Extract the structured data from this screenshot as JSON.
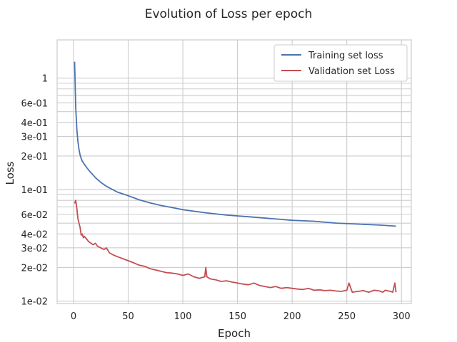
{
  "chart_data": {
    "type": "line",
    "title": "Evolution of Loss per epoch",
    "xlabel": "Epoch",
    "ylabel": "Loss",
    "yscale": "log",
    "xlim": [
      -15,
      309
    ],
    "ylim": [
      0.0095,
      2.2
    ],
    "grid": true,
    "legend_position": "top-right",
    "x_ticks": [
      0,
      50,
      100,
      150,
      200,
      250,
      300
    ],
    "x_tick_labels": [
      "0",
      "50",
      "100",
      "150",
      "200",
      "250",
      "300"
    ],
    "y_ticks": [
      0.01,
      0.02,
      0.03,
      0.04,
      0.06,
      0.1,
      0.2,
      0.3,
      0.4,
      0.6,
      1
    ],
    "y_tick_labels": [
      "1e-02",
      "2e-02",
      "3e-02",
      "4e-02",
      "6e-02",
      "1e-01",
      "2e-01",
      "3e-01",
      "4e-01",
      "6e-01",
      "1"
    ],
    "y_minor_grid": [
      0.05,
      0.07,
      0.08,
      0.09,
      0.5,
      0.7,
      0.8,
      0.9
    ],
    "series": [
      {
        "name": "Training set loss",
        "color": "#4c72b0",
        "x": [
          1,
          2,
          3,
          4,
          5,
          6,
          7,
          8,
          10,
          12,
          15,
          18,
          20,
          25,
          30,
          40,
          50,
          60,
          70,
          80,
          90,
          100,
          120,
          140,
          160,
          180,
          200,
          220,
          240,
          260,
          280,
          295
        ],
        "y": [
          1.4,
          0.55,
          0.35,
          0.27,
          0.23,
          0.205,
          0.19,
          0.18,
          0.168,
          0.158,
          0.145,
          0.135,
          0.128,
          0.116,
          0.107,
          0.095,
          0.088,
          0.081,
          0.076,
          0.072,
          0.069,
          0.066,
          0.062,
          0.059,
          0.057,
          0.055,
          0.053,
          0.052,
          0.05,
          0.049,
          0.048,
          0.047
        ]
      },
      {
        "name": "Validation set Loss",
        "color": "#c44e52",
        "x": [
          1,
          2,
          3,
          4,
          5,
          6,
          7,
          8,
          9,
          10,
          12,
          14,
          16,
          18,
          20,
          22,
          25,
          28,
          30,
          33,
          36,
          40,
          45,
          50,
          55,
          60,
          65,
          70,
          75,
          80,
          85,
          90,
          95,
          100,
          105,
          110,
          115,
          120,
          121,
          122,
          125,
          130,
          135,
          140,
          145,
          150,
          155,
          160,
          165,
          170,
          175,
          180,
          185,
          190,
          195,
          200,
          205,
          210,
          215,
          220,
          225,
          230,
          235,
          240,
          245,
          250,
          252,
          255,
          260,
          265,
          270,
          275,
          280,
          283,
          285,
          290,
          292,
          294,
          295
        ],
        "y": [
          0.075,
          0.08,
          0.068,
          0.055,
          0.05,
          0.046,
          0.039,
          0.04,
          0.037,
          0.038,
          0.036,
          0.034,
          0.033,
          0.032,
          0.033,
          0.031,
          0.03,
          0.029,
          0.03,
          0.027,
          0.026,
          0.025,
          0.024,
          0.023,
          0.022,
          0.021,
          0.0205,
          0.0195,
          0.019,
          0.0185,
          0.018,
          0.0178,
          0.0175,
          0.017,
          0.0175,
          0.0165,
          0.016,
          0.0165,
          0.02,
          0.0165,
          0.0158,
          0.0155,
          0.015,
          0.0152,
          0.0148,
          0.0145,
          0.0142,
          0.014,
          0.0145,
          0.0138,
          0.0135,
          0.0132,
          0.0135,
          0.013,
          0.0132,
          0.013,
          0.0128,
          0.0127,
          0.013,
          0.0125,
          0.0126,
          0.0124,
          0.0125,
          0.0123,
          0.0122,
          0.0125,
          0.0145,
          0.012,
          0.0122,
          0.0124,
          0.012,
          0.0125,
          0.0123,
          0.012,
          0.0125,
          0.0122,
          0.012,
          0.0145,
          0.012
        ]
      }
    ]
  }
}
